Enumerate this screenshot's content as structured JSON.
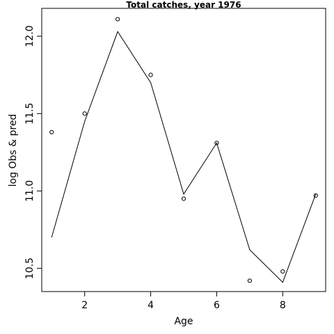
{
  "chart_data": {
    "type": "line",
    "title": "Total catches, year 1976",
    "xlabel": "Age",
    "ylabel": "log Obs & pred",
    "xlim": [
      0.7,
      9.3
    ],
    "ylim": [
      10.35,
      12.18
    ],
    "x_ticks": [
      2,
      4,
      6,
      8
    ],
    "y_ticks": [
      10.5,
      11.0,
      11.5,
      12.0
    ],
    "x_tick_labels": [
      "2",
      "4",
      "6",
      "8"
    ],
    "y_tick_labels": [
      "10.5",
      "11.0",
      "11.5",
      "12.0"
    ],
    "grid": false,
    "series": [
      {
        "role": "observed",
        "style": "points",
        "x": [
          1,
          2,
          3,
          4,
          5,
          6,
          7,
          8,
          9
        ],
        "y": [
          11.38,
          11.5,
          12.11,
          11.75,
          10.95,
          11.31,
          10.42,
          10.48,
          10.97
        ]
      },
      {
        "role": "predicted",
        "style": "line",
        "x": [
          1,
          2,
          3,
          4,
          5,
          6,
          7,
          8,
          9
        ],
        "y": [
          10.7,
          11.45,
          12.03,
          11.7,
          10.98,
          11.31,
          10.62,
          10.41,
          10.98
        ]
      }
    ]
  }
}
